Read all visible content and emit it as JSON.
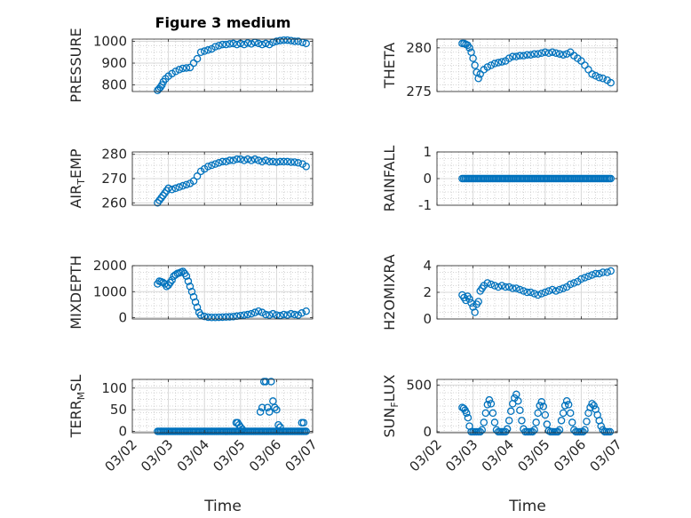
{
  "figure": {
    "title": "Figure 3 medium",
    "xlabel": "Time",
    "x_tick_labels": [
      "03/02",
      "03/03",
      "03/04",
      "03/05",
      "03/06",
      "03/07"
    ],
    "marker_color": "#0072BD"
  },
  "chart_data": [
    {
      "type": "scatter",
      "title": "Figure 3 medium",
      "ylabel": "PRESSURE",
      "ylim": [
        770,
        1010
      ],
      "yticks": [
        800,
        900,
        1000
      ],
      "ytick_labels": [
        "800",
        "900",
        "1000"
      ],
      "xlim": [
        0,
        5
      ],
      "grid": true,
      "marker": "circle",
      "x": [
        0.7,
        0.74,
        0.78,
        0.82,
        0.86,
        0.92,
        1.0,
        1.1,
        1.2,
        1.3,
        1.4,
        1.5,
        1.6,
        1.7,
        1.8,
        1.9,
        2.0,
        2.1,
        2.2,
        2.3,
        2.4,
        2.5,
        2.6,
        2.7,
        2.8,
        2.9,
        3.0,
        3.1,
        3.2,
        3.3,
        3.4,
        3.5,
        3.6,
        3.7,
        3.8,
        3.9,
        4.0,
        4.1,
        4.2,
        4.3,
        4.4,
        4.5,
        4.6,
        4.72,
        4.82
      ],
      "y": [
        775,
        782,
        790,
        800,
        815,
        828,
        840,
        852,
        862,
        870,
        876,
        878,
        880,
        900,
        920,
        950,
        955,
        960,
        965,
        975,
        980,
        985,
        985,
        988,
        990,
        985,
        990,
        985,
        992,
        988,
        995,
        990,
        985,
        990,
        985,
        995,
        1000,
        1003,
        1005,
        1005,
        1003,
        1000,
        1000,
        995,
        990
      ]
    },
    {
      "type": "scatter",
      "ylabel": "THETA",
      "ylim": [
        275,
        281
      ],
      "yticks": [
        275,
        280
      ],
      "ytick_labels": [
        "275",
        "280"
      ],
      "xlim": [
        0,
        5
      ],
      "grid": true,
      "marker": "circle",
      "x": [
        0.7,
        0.75,
        0.8,
        0.85,
        0.9,
        0.95,
        1.0,
        1.05,
        1.1,
        1.15,
        1.2,
        1.3,
        1.4,
        1.5,
        1.6,
        1.7,
        1.8,
        1.9,
        2.0,
        2.1,
        2.2,
        2.3,
        2.4,
        2.5,
        2.6,
        2.7,
        2.8,
        2.9,
        3.0,
        3.1,
        3.2,
        3.3,
        3.4,
        3.5,
        3.6,
        3.7,
        3.8,
        3.9,
        4.0,
        4.1,
        4.2,
        4.3,
        4.4,
        4.5,
        4.6,
        4.72,
        4.82
      ],
      "y": [
        280.5,
        280.5,
        280.4,
        280.3,
        280.0,
        279.5,
        278.8,
        278.0,
        277.2,
        276.5,
        277.0,
        277.5,
        277.8,
        278.0,
        278.2,
        278.3,
        278.4,
        278.5,
        278.8,
        279.0,
        279.0,
        279.1,
        279.1,
        279.2,
        279.2,
        279.3,
        279.3,
        279.4,
        279.5,
        279.4,
        279.5,
        279.4,
        279.3,
        279.2,
        279.3,
        279.5,
        279.1,
        278.8,
        278.5,
        278.0,
        277.5,
        277.0,
        276.8,
        276.6,
        276.5,
        276.3,
        276.0
      ]
    },
    {
      "type": "scatter",
      "ylabel": "AIR_TEMP",
      "ylim": [
        259,
        281
      ],
      "yticks": [
        260,
        270,
        280
      ],
      "ytick_labels": [
        "260",
        "270",
        "280"
      ],
      "xlim": [
        0,
        5
      ],
      "grid": true,
      "marker": "circle",
      "x": [
        0.7,
        0.75,
        0.8,
        0.85,
        0.9,
        0.95,
        1.0,
        1.1,
        1.2,
        1.3,
        1.4,
        1.5,
        1.6,
        1.7,
        1.8,
        1.9,
        2.0,
        2.1,
        2.2,
        2.3,
        2.4,
        2.5,
        2.6,
        2.7,
        2.8,
        2.9,
        3.0,
        3.1,
        3.2,
        3.3,
        3.4,
        3.5,
        3.6,
        3.7,
        3.8,
        3.9,
        4.0,
        4.1,
        4.2,
        4.3,
        4.4,
        4.5,
        4.6,
        4.72,
        4.82
      ],
      "y": [
        260,
        261,
        262,
        263,
        264,
        265,
        266,
        265.5,
        266,
        266.5,
        267,
        267.5,
        268,
        269,
        271,
        273,
        274,
        275,
        275.5,
        276,
        276.5,
        277,
        277,
        277.5,
        277.5,
        278,
        278,
        277.5,
        278,
        277.5,
        278,
        277.5,
        277,
        277.5,
        277,
        277,
        276.8,
        277,
        277,
        277,
        276.8,
        276.8,
        276.5,
        276,
        275
      ]
    },
    {
      "type": "scatter",
      "ylabel": "RAINFALL",
      "ylim": [
        -1,
        1
      ],
      "yticks": [
        -1,
        0,
        1
      ],
      "ytick_labels": [
        "-1",
        "0",
        "1"
      ],
      "xlim": [
        0,
        5
      ],
      "grid": true,
      "marker": "circle",
      "x_range": [
        0.7,
        4.82
      ],
      "constant_y": 0,
      "n_points": 100
    },
    {
      "type": "scatter",
      "ylabel": "MIXDEPTH",
      "ylim": [
        -50,
        2000
      ],
      "yticks": [
        0,
        1000,
        2000
      ],
      "ytick_labels": [
        "0",
        "1000",
        "2000"
      ],
      "xlim": [
        0,
        5
      ],
      "grid": true,
      "marker": "circle",
      "x": [
        0.7,
        0.75,
        0.8,
        0.85,
        0.9,
        0.95,
        1.0,
        1.05,
        1.1,
        1.15,
        1.2,
        1.25,
        1.3,
        1.35,
        1.4,
        1.45,
        1.5,
        1.55,
        1.6,
        1.65,
        1.7,
        1.75,
        1.8,
        1.85,
        1.9,
        2.0,
        2.1,
        2.2,
        2.3,
        2.4,
        2.5,
        2.6,
        2.7,
        2.8,
        2.9,
        3.0,
        3.1,
        3.2,
        3.3,
        3.4,
        3.5,
        3.6,
        3.7,
        3.8,
        3.9,
        4.0,
        4.1,
        4.2,
        4.3,
        4.4,
        4.5,
        4.6,
        4.7,
        4.82
      ],
      "y": [
        1300,
        1400,
        1380,
        1350,
        1300,
        1200,
        1250,
        1350,
        1450,
        1600,
        1650,
        1700,
        1720,
        1750,
        1780,
        1700,
        1600,
        1400,
        1200,
        1000,
        800,
        600,
        400,
        200,
        100,
        50,
        20,
        10,
        10,
        15,
        20,
        25,
        30,
        40,
        60,
        80,
        100,
        120,
        150,
        200,
        250,
        200,
        120,
        100,
        150,
        100,
        80,
        120,
        100,
        150,
        120,
        100,
        180,
        250
      ]
    },
    {
      "type": "scatter",
      "ylabel": "H2OMIXRA",
      "ylim": [
        0,
        4
      ],
      "yticks": [
        0,
        2,
        4
      ],
      "ytick_labels": [
        "0",
        "2",
        "4"
      ],
      "xlim": [
        0,
        5
      ],
      "grid": true,
      "marker": "circle",
      "x": [
        0.7,
        0.75,
        0.8,
        0.85,
        0.9,
        0.95,
        1.0,
        1.05,
        1.1,
        1.15,
        1.2,
        1.25,
        1.3,
        1.4,
        1.5,
        1.6,
        1.7,
        1.8,
        1.9,
        2.0,
        2.1,
        2.2,
        2.3,
        2.4,
        2.5,
        2.6,
        2.7,
        2.8,
        2.9,
        3.0,
        3.1,
        3.2,
        3.3,
        3.4,
        3.5,
        3.6,
        3.7,
        3.8,
        3.9,
        4.0,
        4.1,
        4.2,
        4.3,
        4.4,
        4.5,
        4.6,
        4.72,
        4.82
      ],
      "y": [
        1.8,
        1.6,
        1.4,
        1.7,
        1.5,
        1.2,
        0.9,
        0.5,
        1.1,
        1.3,
        2.1,
        2.3,
        2.5,
        2.7,
        2.6,
        2.5,
        2.4,
        2.5,
        2.4,
        2.4,
        2.3,
        2.3,
        2.2,
        2.1,
        2.0,
        2.0,
        1.9,
        1.8,
        1.9,
        2.0,
        2.1,
        2.2,
        2.1,
        2.2,
        2.3,
        2.4,
        2.6,
        2.7,
        2.8,
        3.0,
        3.1,
        3.2,
        3.3,
        3.4,
        3.4,
        3.5,
        3.5,
        3.6
      ]
    },
    {
      "type": "scatter",
      "ylabel": "TERR_MSL",
      "ylim": [
        -3,
        120
      ],
      "yticks": [
        0,
        50,
        100
      ],
      "ytick_labels": [
        "0",
        "50",
        "100"
      ],
      "xlim": [
        0,
        5
      ],
      "grid": true,
      "marker": "circle",
      "baseline_x_range": [
        0.7,
        4.82
      ],
      "baseline_y": 0,
      "baseline_n": 100,
      "x": [
        2.88,
        2.92,
        2.96,
        3.0,
        3.05,
        3.55,
        3.6,
        3.65,
        3.7,
        3.75,
        3.8,
        3.85,
        3.9,
        3.95,
        4.0,
        4.05,
        4.1,
        4.7,
        4.75
      ],
      "y": [
        20,
        20,
        15,
        10,
        5,
        45,
        55,
        115,
        115,
        55,
        45,
        115,
        70,
        55,
        50,
        15,
        10,
        20,
        20
      ]
    },
    {
      "type": "scatter",
      "ylabel": "SUN_FLUX",
      "ylim": [
        -10,
        560
      ],
      "yticks": [
        0,
        500
      ],
      "ytick_labels": [
        "0",
        "500"
      ],
      "xlim": [
        0,
        5
      ],
      "grid": true,
      "marker": "circle",
      "x": [
        0.7,
        0.74,
        0.78,
        0.82,
        0.86,
        0.9,
        0.95,
        1.0,
        1.05,
        1.1,
        1.15,
        1.2,
        1.25,
        1.3,
        1.35,
        1.4,
        1.45,
        1.5,
        1.55,
        1.6,
        1.65,
        1.7,
        1.75,
        1.8,
        1.85,
        1.9,
        1.95,
        2.0,
        2.05,
        2.1,
        2.15,
        2.2,
        2.25,
        2.3,
        2.35,
        2.4,
        2.45,
        2.5,
        2.55,
        2.6,
        2.65,
        2.7,
        2.75,
        2.8,
        2.85,
        2.9,
        2.95,
        3.0,
        3.05,
        3.1,
        3.15,
        3.2,
        3.25,
        3.3,
        3.35,
        3.4,
        3.45,
        3.5,
        3.55,
        3.6,
        3.65,
        3.7,
        3.75,
        3.8,
        3.85,
        3.9,
        3.95,
        4.0,
        4.05,
        4.1,
        4.15,
        4.2,
        4.25,
        4.3,
        4.35,
        4.4,
        4.45,
        4.5,
        4.55,
        4.6,
        4.65,
        4.7,
        4.75,
        4.8
      ],
      "y": [
        260,
        250,
        230,
        200,
        150,
        60,
        0,
        0,
        0,
        0,
        0,
        0,
        20,
        100,
        200,
        290,
        340,
        300,
        200,
        100,
        20,
        0,
        0,
        0,
        0,
        0,
        30,
        120,
        220,
        300,
        360,
        400,
        330,
        230,
        120,
        30,
        0,
        0,
        0,
        0,
        0,
        20,
        100,
        200,
        280,
        320,
        270,
        180,
        80,
        10,
        0,
        0,
        0,
        0,
        0,
        20,
        120,
        200,
        280,
        330,
        290,
        200,
        100,
        20,
        0,
        0,
        0,
        0,
        0,
        20,
        110,
        200,
        260,
        300,
        280,
        240,
        180,
        120,
        60,
        20,
        0,
        0,
        0,
        0
      ]
    }
  ]
}
